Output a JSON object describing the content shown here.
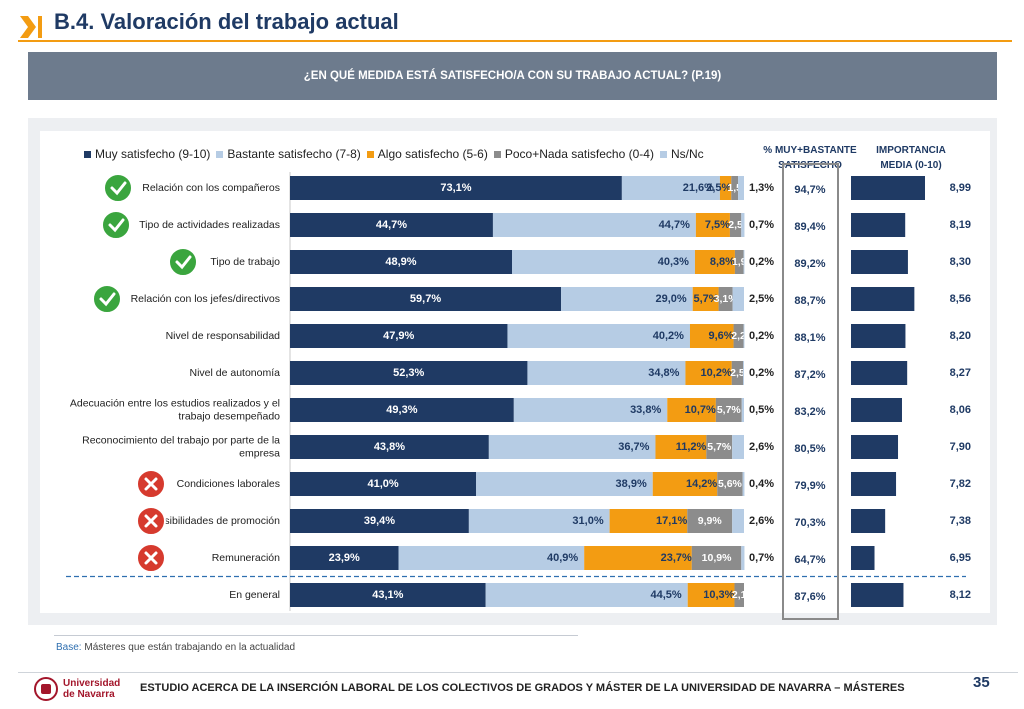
{
  "header": {
    "title": "B.4. Valoración del trabajo actual",
    "question": "¿EN QUÉ MEDIDA ESTÁ SATISFECHO/A CON SU TRABAJO ACTUAL? (P.19)"
  },
  "columns": {
    "pct_header_line1": "% MUY+BASTANTE",
    "pct_header_line2": "SATISFECHO",
    "imp_header_line1": "IMPORTANCIA",
    "imp_header_line2": "MEDIA (0-10)"
  },
  "colors": {
    "muy": "#1f3a64",
    "bastante": "#b6cce4",
    "algo": "#f39c12",
    "poco": "#8c8c8c",
    "nsnc": "#b6cce4",
    "importance": "#1f3a64",
    "check": "#3aa53e",
    "cross": "#d63a2e",
    "dashed": "#2f6fb0"
  },
  "chart_data": {
    "type": "bar",
    "orientation": "horizontal",
    "stacked": true,
    "xlim": [
      0,
      100
    ],
    "categories": [
      [
        "Relación con los compañeros"
      ],
      [
        "Tipo de actividades realizadas"
      ],
      [
        "Tipo de trabajo"
      ],
      [
        "Relación con los jefes/directivos"
      ],
      [
        "Nivel de responsabilidad"
      ],
      [
        "Nivel de autonomía"
      ],
      [
        "Adecuación entre los estudios realizados y el",
        "trabajo desempeñado"
      ],
      [
        "Reconocimiento del trabajo por parte de la",
        "empresa"
      ],
      [
        "Condiciones laborales"
      ],
      [
        "Posibilidades de promoción"
      ],
      [
        "Remuneración"
      ],
      [
        "En general"
      ]
    ],
    "series": [
      {
        "name": "Muy satisfecho (9-10)",
        "values": [
          73.1,
          44.7,
          48.9,
          59.7,
          47.9,
          52.3,
          49.3,
          43.8,
          41.0,
          39.4,
          23.9,
          43.1
        ],
        "labels": [
          "73,1%",
          "44,7%",
          "48,9%",
          "59,7%",
          "47,9%",
          "52,3%",
          "49,3%",
          "43,8%",
          "41,0%",
          "39,4%",
          "23,9%",
          "43,1%"
        ]
      },
      {
        "name": "Bastante satisfecho (7-8)",
        "values": [
          21.6,
          44.7,
          40.3,
          29.0,
          40.2,
          34.8,
          33.8,
          36.7,
          38.9,
          31.0,
          40.9,
          44.5
        ],
        "labels": [
          "21,6%",
          "44,7%",
          "40,3%",
          "29,0%",
          "40,2%",
          "34,8%",
          "33,8%",
          "36,7%",
          "38,9%",
          "31,0%",
          "40,9%",
          "44,5%"
        ]
      },
      {
        "name": "Algo satisfecho (5-6)",
        "values": [
          2.5,
          7.5,
          8.8,
          5.7,
          9.6,
          10.2,
          10.7,
          11.2,
          14.2,
          17.1,
          23.7,
          10.3
        ],
        "labels": [
          "2,5%",
          "7,5%",
          "8,8%",
          "5,7%",
          "9,6%",
          "10,2%",
          "10,7%",
          "11,2%",
          "14,2%",
          "17,1%",
          "23,7%",
          "10,3%"
        ]
      },
      {
        "name": "Poco+Nada satisfecho (0-4)",
        "values": [
          1.5,
          2.5,
          1.9,
          3.1,
          2.2,
          2.5,
          5.7,
          5.7,
          5.6,
          9.9,
          10.9,
          2.1
        ],
        "labels": [
          "1,5",
          "2,5",
          "1,9",
          "3,1%",
          "2,2",
          "2,5",
          "5,7%",
          "5,7%",
          "5,6%",
          "9,9%",
          "10,9%",
          "2,1"
        ]
      },
      {
        "name": "Ns/Nc",
        "values": [
          1.3,
          0.7,
          0.2,
          2.5,
          0.2,
          0.2,
          0.5,
          2.6,
          0.4,
          2.6,
          0.7,
          0.0
        ],
        "labels": [
          "1,3%",
          "0,7%",
          "0,2%",
          "2,5%",
          "0,2%",
          "0,2%",
          "0,5%",
          "2,6%",
          "0,4%",
          "2,6%",
          "0,7%",
          ""
        ]
      }
    ],
    "pct_satisfied": [
      "94,7%",
      "89,4%",
      "89,2%",
      "88,7%",
      "88,1%",
      "87,2%",
      "83,2%",
      "80,5%",
      "79,9%",
      "70,3%",
      "64,7%",
      "87,6%"
    ],
    "importance": [
      8.99,
      8.19,
      8.3,
      8.56,
      8.2,
      8.27,
      8.06,
      7.9,
      7.82,
      7.38,
      6.95,
      8.12
    ],
    "importance_labels": [
      "8,99",
      "8,19",
      "8,30",
      "8,56",
      "8,20",
      "8,27",
      "8,06",
      "7,90",
      "7,82",
      "7,38",
      "6,95",
      "8,12"
    ],
    "importance_scale": [
      0,
      10
    ],
    "markers": [
      "check",
      "check",
      "check",
      "check",
      "",
      "",
      "",
      "",
      "cross",
      "cross",
      "cross",
      ""
    ],
    "legend_position": "top"
  },
  "footer": {
    "base_label": "Base:",
    "base_text": "Másteres que están trabajando en la actualidad",
    "logo_line1": "Universidad",
    "logo_line2": "de Navarra",
    "study": "ESTUDIO ACERCA DE LA INSERCIÓN LABORAL DE LOS COLECTIVOS DE GRADOS Y MÁSTER DE LA UNIVERSIDAD DE NAVARRA – MÁSTERES",
    "page": "35"
  }
}
